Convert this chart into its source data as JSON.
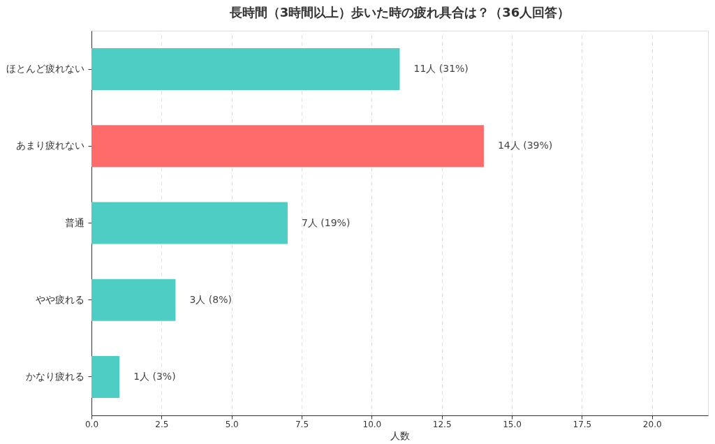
{
  "chart_data": {
    "type": "bar",
    "orientation": "horizontal",
    "title": "長時間（3時間以上）歩いた時の疲れ具合は？（36人回答）",
    "xlabel": "人数",
    "categories": [
      "ほとんど疲れない",
      "あまり疲れない",
      "普通",
      "やや疲れる",
      "かなり疲れる"
    ],
    "values": [
      11,
      14,
      7,
      3,
      1
    ],
    "colors": [
      "#4ecdc4",
      "#ff6b6b",
      "#4ecdc4",
      "#4ecdc4",
      "#4ecdc4"
    ],
    "value_labels": [
      "11人 (31%)",
      "14人 (39%)",
      "7人 (19%)",
      "3人 (8%)",
      "1人 (3%)"
    ],
    "xlim": [
      0,
      22
    ],
    "xticks": [
      {
        "value": 0,
        "label": "0.0"
      },
      {
        "value": 2.5,
        "label": "2.5"
      },
      {
        "value": 5,
        "label": "5.0"
      },
      {
        "value": 7.5,
        "label": "7.5"
      },
      {
        "value": 10,
        "label": "10.0"
      },
      {
        "value": 12.5,
        "label": "12.5"
      },
      {
        "value": 15,
        "label": "15.0"
      },
      {
        "value": 17.5,
        "label": "17.5"
      },
      {
        "value": 20,
        "label": "20.0"
      }
    ],
    "grid": "x"
  }
}
